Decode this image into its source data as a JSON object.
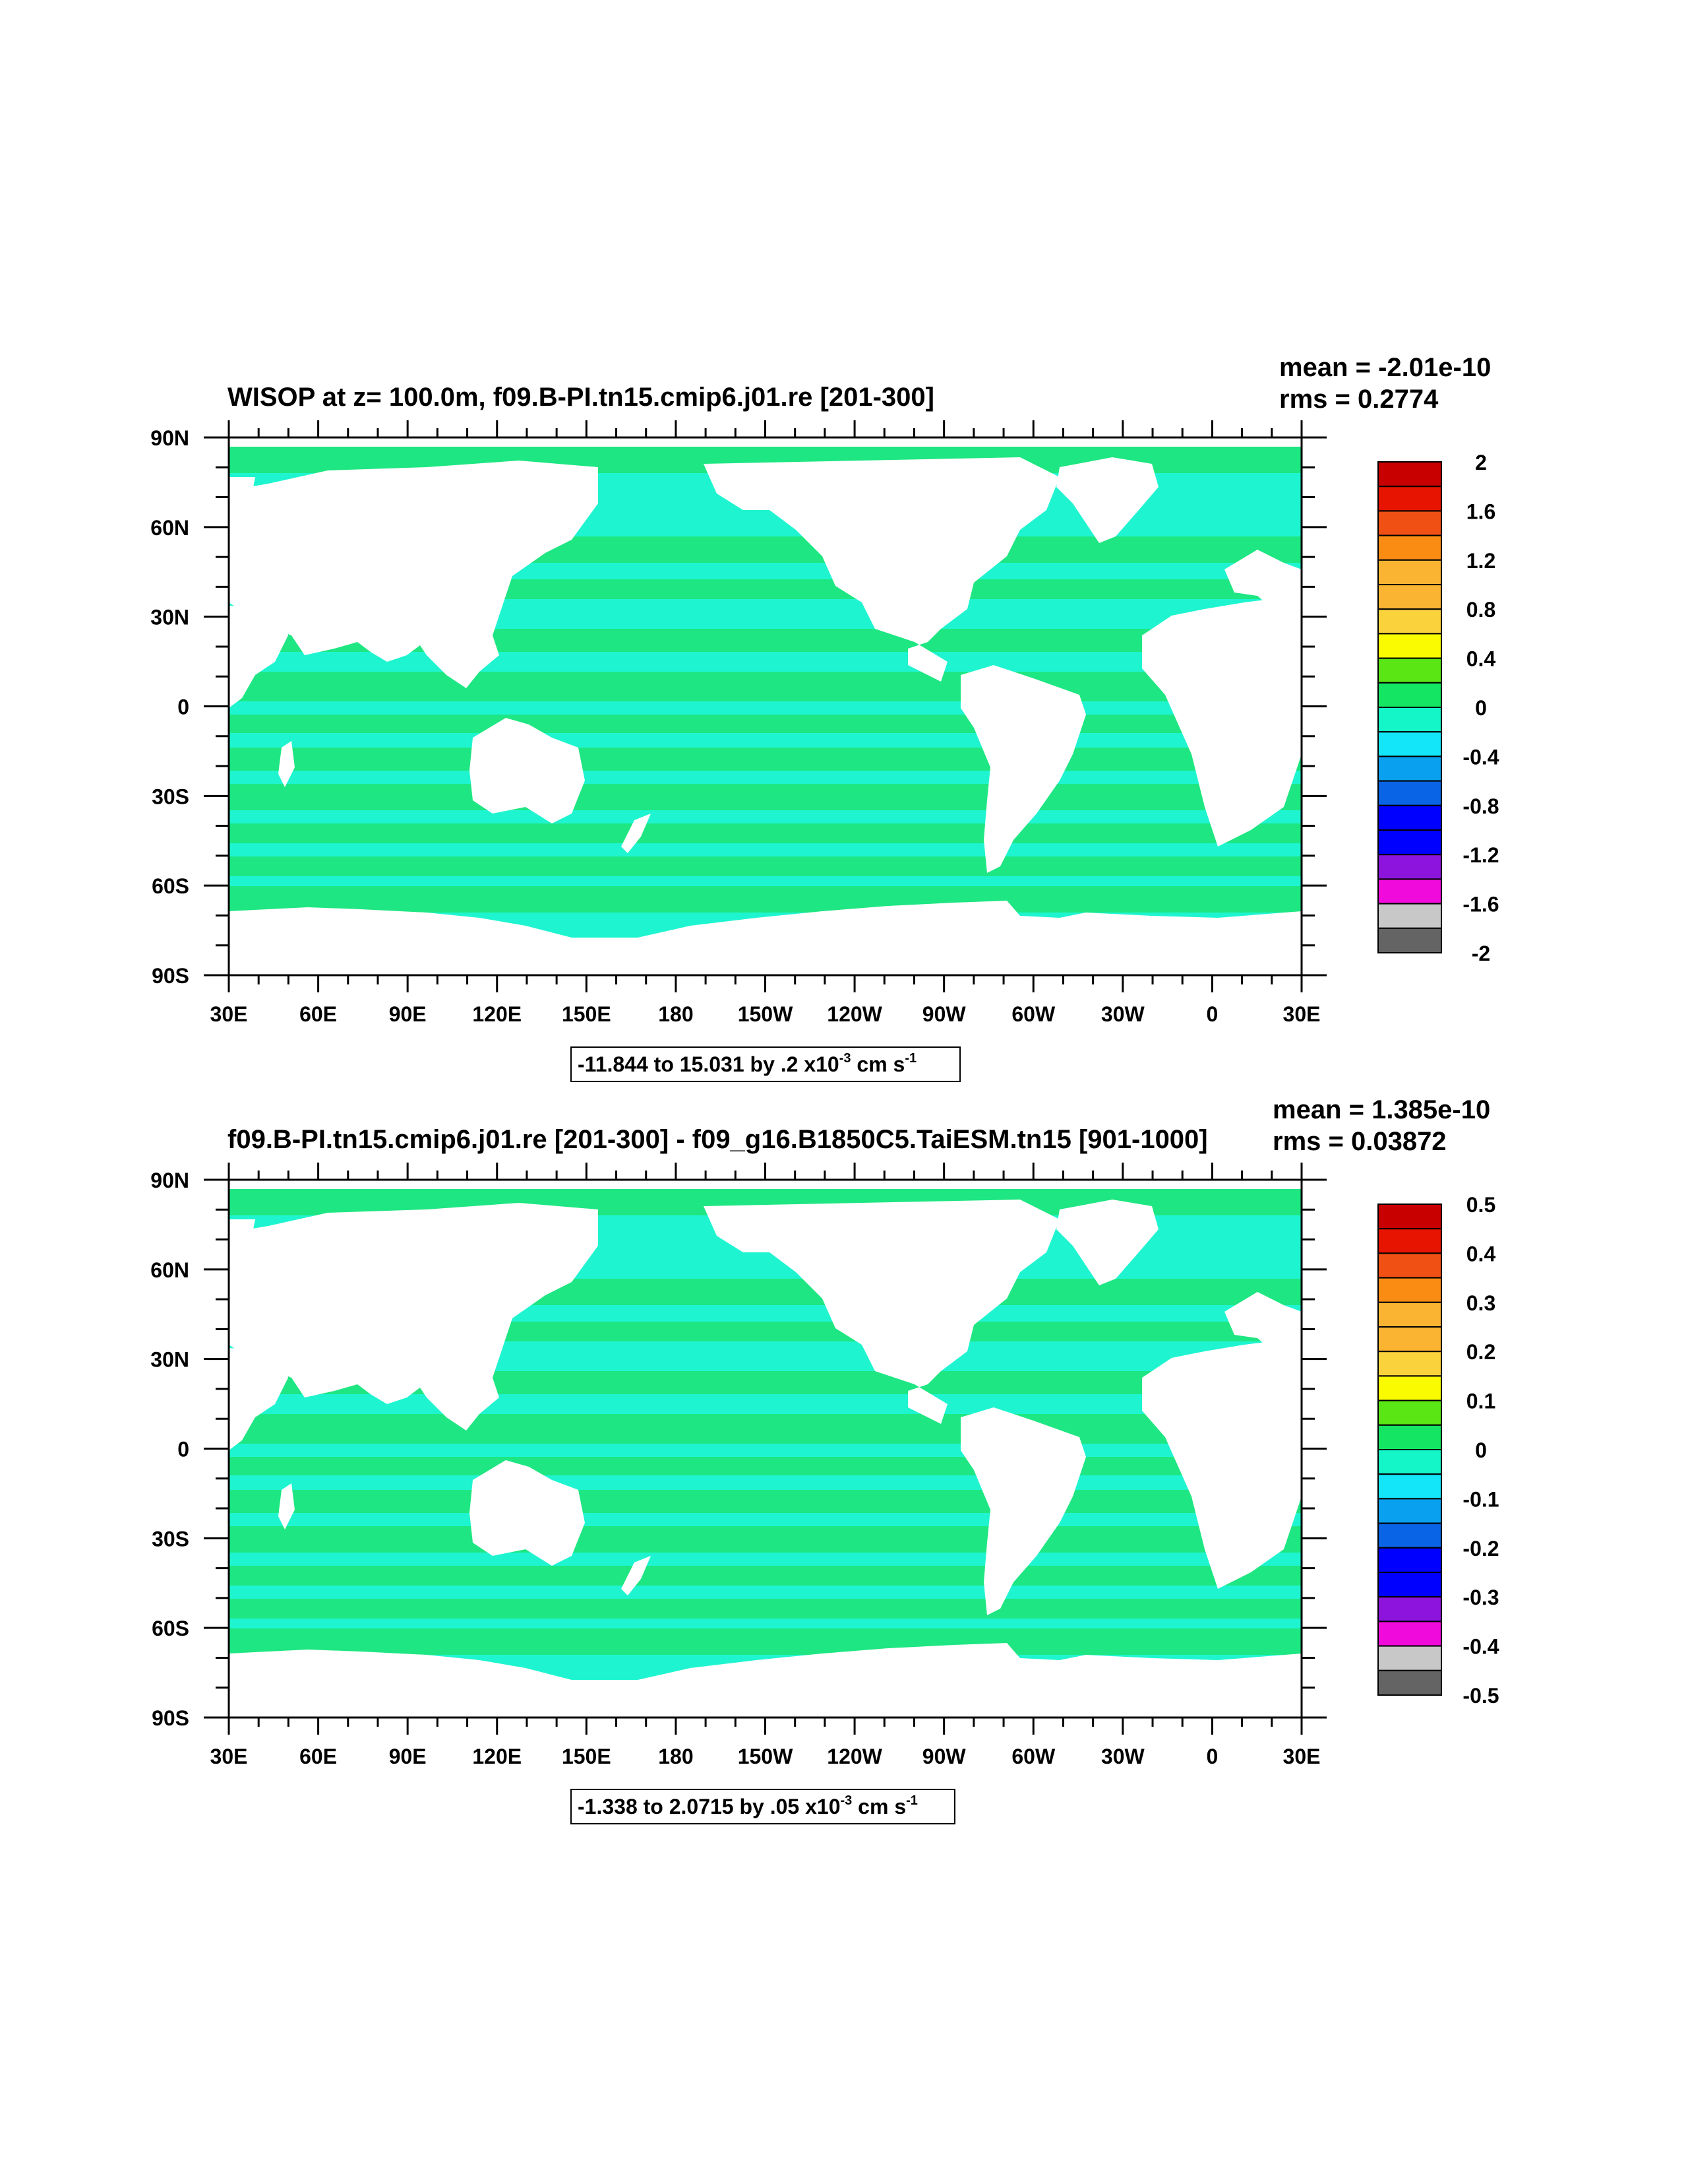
{
  "colors": {
    "ocean_main": "#1ef5d0",
    "ocean_band": "#1ee682",
    "land": "#ffffff"
  },
  "palette": [
    "#646464",
    "#c8c8c8",
    "#f00adc",
    "#8c14dc",
    "#0000ff",
    "#0a64e6",
    "#0aa0f0",
    "#14e6fa",
    "#14f5c8",
    "#14e664",
    "#5ae614",
    "#fafa00",
    "#fad23c",
    "#fab432",
    "#fa8c14",
    "#f05014",
    "#e61400",
    "#c80000"
  ],
  "lon_labels": [
    "30E",
    "60E",
    "90E",
    "120E",
    "150E",
    "180",
    "150W",
    "120W",
    "90W",
    "60W",
    "30W",
    "0",
    "30E"
  ],
  "lat_labels": [
    "90N",
    "60N",
    "30N",
    "0",
    "30S",
    "60S",
    "90S"
  ],
  "panels": [
    {
      "title": "WISOP at z= 100.0m, f09.B-PI.tn15.cmip6.j01.re [201-300]",
      "mean": "mean = -2.01e-10",
      "rms": "rms = 0.2774",
      "info_main": "-11.844 to 15.031 by .2 x10",
      "info_exp": "-3",
      "info_unit": " cm s",
      "info_unit_exp": "-1",
      "levels": [
        "2",
        "1.6",
        "1.2",
        "0.8",
        "0.4",
        "0",
        "-0.4",
        "-0.8",
        "-1.2",
        "-1.6",
        "-2"
      ]
    },
    {
      "title": "f09.B-PI.tn15.cmip6.j01.re [201-300] - f09_g16.B1850C5.TaiESM.tn15 [901-1000]",
      "mean": "mean = 1.385e-10",
      "rms": "rms = 0.03872",
      "info_main": "-1.338 to 2.0715 by .05 x10",
      "info_exp": "-3",
      "info_unit": " cm s",
      "info_unit_exp": "-1",
      "levels": [
        "0.5",
        "0.4",
        "0.3",
        "0.2",
        "0.1",
        "0",
        "-0.1",
        "-0.2",
        "-0.3",
        "-0.4",
        "-0.5"
      ]
    }
  ]
}
